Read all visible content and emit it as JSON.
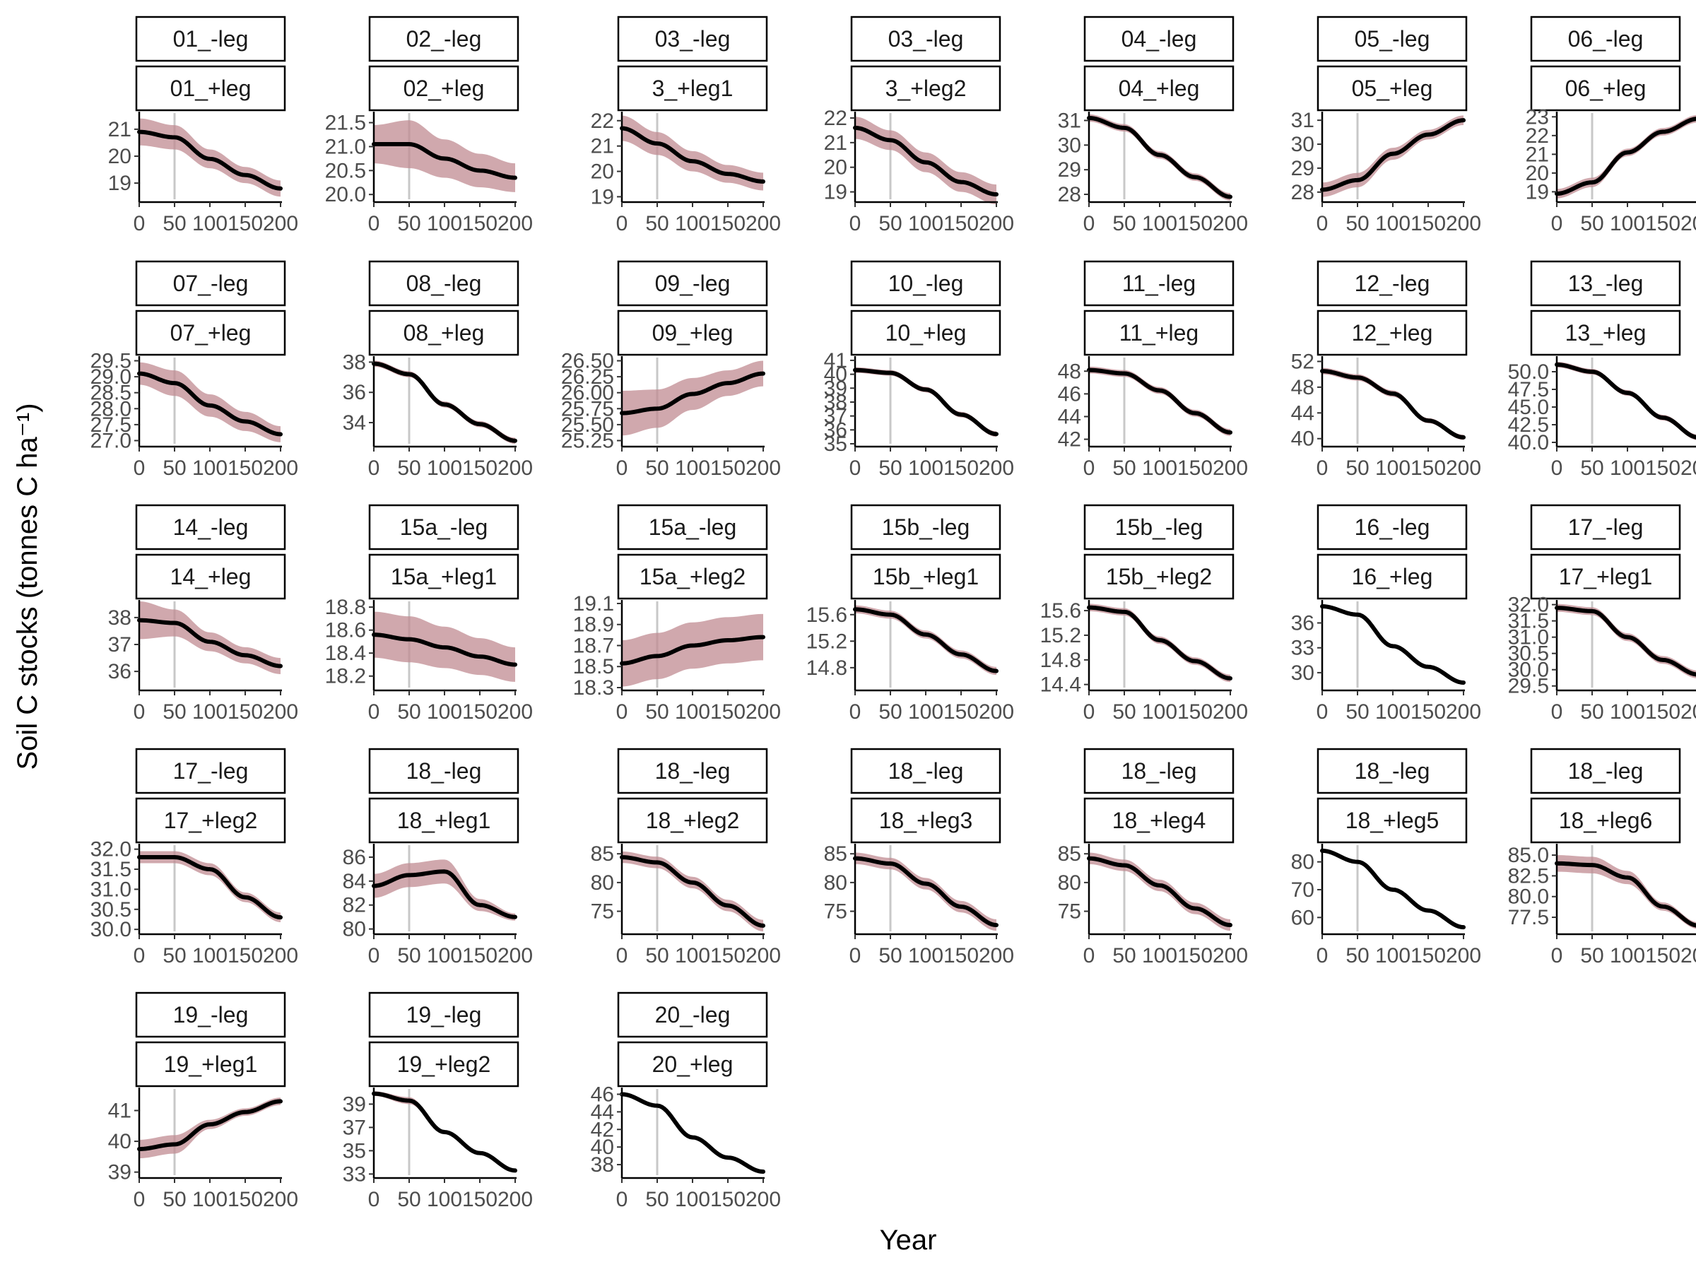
{
  "figure": {
    "xlabel": "Year",
    "ylabel": "Soil C stocks (tonnes C ha⁻¹)",
    "colors": {
      "line": "#000000",
      "band": "#c08b92",
      "vline": "#c8c8c8",
      "strip_fill": "#ffffff",
      "strip_border": "#000000"
    }
  },
  "chart_data": {
    "type": "line",
    "layout": "facet grid, 7 columns x 5 rows, two strip labels per panel",
    "x_ticks": [
      0,
      50,
      100,
      150,
      200
    ],
    "x_range": [
      0,
      200
    ],
    "vline_x": 50,
    "panels": [
      {
        "label1": "01_-leg",
        "label2": "01_+leg",
        "yticks": [
          19,
          20,
          21
        ],
        "ylim": [
          18.4,
          21.6
        ],
        "x": [
          0,
          50,
          100,
          150,
          200
        ],
        "y": [
          20.9,
          20.7,
          19.9,
          19.3,
          18.8
        ],
        "band": [
          0.5,
          0.45,
          0.35,
          0.3,
          0.3
        ]
      },
      {
        "label1": "02_-leg",
        "label2": "02_+leg",
        "yticks": [
          20.0,
          20.5,
          21.0,
          21.5
        ],
        "ylim": [
          19.9,
          21.7
        ],
        "x": [
          0,
          50,
          100,
          150,
          200
        ],
        "y": [
          21.05,
          21.05,
          20.75,
          20.5,
          20.35
        ],
        "band": [
          0.4,
          0.5,
          0.4,
          0.35,
          0.3
        ]
      },
      {
        "label1": "03_-leg",
        "label2": "3_+leg1",
        "yticks": [
          19,
          20,
          21,
          22
        ],
        "ylim": [
          18.9,
          22.3
        ],
        "x": [
          0,
          50,
          100,
          150,
          200
        ],
        "y": [
          21.7,
          21.1,
          20.4,
          19.9,
          19.6
        ],
        "band": [
          0.5,
          0.45,
          0.4,
          0.35,
          0.35
        ]
      },
      {
        "label1": "03_-leg",
        "label2": "3_+leg2",
        "yticks": [
          19,
          20,
          21,
          22
        ],
        "ylim": [
          18.7,
          22.2
        ],
        "x": [
          0,
          50,
          100,
          150,
          200
        ],
        "y": [
          21.6,
          21.1,
          20.2,
          19.4,
          18.9
        ],
        "band": [
          0.45,
          0.4,
          0.4,
          0.4,
          0.4
        ]
      },
      {
        "label1": "04_-leg",
        "label2": "04_+leg",
        "yticks": [
          28,
          29,
          30,
          31
        ],
        "ylim": [
          27.8,
          31.3
        ],
        "x": [
          0,
          50,
          100,
          150,
          200
        ],
        "y": [
          31.1,
          30.7,
          29.6,
          28.7,
          27.9
        ],
        "band": [
          0.15,
          0.15,
          0.15,
          0.15,
          0.15
        ]
      },
      {
        "label1": "05_-leg",
        "label2": "05_+leg",
        "yticks": [
          28,
          29,
          30,
          31
        ],
        "ylim": [
          27.7,
          31.3
        ],
        "x": [
          0,
          50,
          100,
          150,
          200
        ],
        "y": [
          28.1,
          28.5,
          29.6,
          30.4,
          31.0
        ],
        "band": [
          0.3,
          0.3,
          0.25,
          0.2,
          0.2
        ]
      },
      {
        "label1": "06_-leg",
        "label2": "06_+leg",
        "yticks": [
          19,
          20,
          21,
          22,
          23
        ],
        "ylim": [
          18.6,
          23.2
        ],
        "x": [
          0,
          50,
          100,
          150,
          200
        ],
        "y": [
          18.9,
          19.5,
          21.1,
          22.2,
          22.9
        ],
        "band": [
          0.25,
          0.25,
          0.2,
          0.2,
          0.2
        ]
      },
      {
        "label1": "07_-leg",
        "label2": "07_+leg",
        "yticks": [
          27.0,
          27.5,
          28.0,
          28.5,
          29.0,
          29.5
        ],
        "ylim": [
          26.9,
          29.6
        ],
        "x": [
          0,
          50,
          100,
          150,
          200
        ],
        "y": [
          29.1,
          28.8,
          28.1,
          27.6,
          27.2
        ],
        "band": [
          0.35,
          0.4,
          0.35,
          0.3,
          0.25
        ]
      },
      {
        "label1": "08_-leg",
        "label2": "08_+leg",
        "yticks": [
          34,
          36,
          38
        ],
        "ylim": [
          32.6,
          38.3
        ],
        "x": [
          0,
          50,
          100,
          150,
          200
        ],
        "y": [
          37.9,
          37.2,
          35.2,
          33.9,
          32.8
        ],
        "band": [
          0.2,
          0.2,
          0.2,
          0.2,
          0.2
        ]
      },
      {
        "label1": "09_-leg",
        "label2": "09_+leg",
        "yticks": [
          25.25,
          25.5,
          25.75,
          26.0,
          26.25,
          26.5
        ],
        "ylim": [
          25.2,
          26.55
        ],
        "x": [
          0,
          50,
          100,
          150,
          200
        ],
        "y": [
          25.68,
          25.75,
          25.98,
          26.15,
          26.3
        ],
        "band": [
          0.35,
          0.3,
          0.25,
          0.2,
          0.2
        ]
      },
      {
        "label1": "10_-leg",
        "label2": "10_+leg",
        "yticks": [
          35,
          36,
          37,
          38,
          39,
          40,
          41
        ],
        "ylim": [
          35.0,
          41.2
        ],
        "x": [
          0,
          50,
          100,
          150,
          200
        ],
        "y": [
          40.3,
          40.1,
          38.9,
          37.1,
          35.7
        ],
        "band": [
          0.2,
          0.2,
          0.2,
          0.2,
          0.2
        ]
      },
      {
        "label1": "11_-leg",
        "label2": "11_+leg",
        "yticks": [
          42,
          44,
          46,
          48
        ],
        "ylim": [
          41.6,
          49.2
        ],
        "x": [
          0,
          50,
          100,
          150,
          200
        ],
        "y": [
          48.1,
          47.8,
          46.3,
          44.3,
          42.6
        ],
        "band": [
          0.3,
          0.3,
          0.3,
          0.3,
          0.3
        ]
      },
      {
        "label1": "12_-leg",
        "label2": "12_+leg",
        "yticks": [
          40,
          44,
          48,
          52
        ],
        "ylim": [
          39.2,
          52.6
        ],
        "x": [
          0,
          50,
          100,
          150,
          200
        ],
        "y": [
          50.5,
          49.5,
          47.0,
          42.8,
          40.2
        ],
        "band": [
          0.5,
          0.5,
          0.5,
          0.4,
          0.4
        ]
      },
      {
        "label1": "13_-leg",
        "label2": "13_+leg",
        "yticks": [
          40.0,
          42.5,
          45.0,
          47.5,
          50.0
        ],
        "ylim": [
          39.8,
          52.0
        ],
        "x": [
          0,
          50,
          100,
          150,
          200
        ],
        "y": [
          51.0,
          50.0,
          47.0,
          43.5,
          40.7
        ],
        "band": [
          0.4,
          0.4,
          0.4,
          0.4,
          0.4
        ]
      },
      {
        "label1": "14_-leg",
        "label2": "14_+leg",
        "yticks": [
          36,
          37,
          38
        ],
        "ylim": [
          35.4,
          38.6
        ],
        "x": [
          0,
          50,
          100,
          150,
          200
        ],
        "y": [
          37.9,
          37.8,
          37.1,
          36.6,
          36.2
        ],
        "band": [
          0.7,
          0.5,
          0.35,
          0.3,
          0.3
        ]
      },
      {
        "label1": "15a_-leg",
        "label2": "15a_+leg1",
        "yticks": [
          18.2,
          18.4,
          18.6,
          18.8
        ],
        "ylim": [
          18.1,
          18.85
        ],
        "x": [
          0,
          50,
          100,
          150,
          200
        ],
        "y": [
          18.56,
          18.52,
          18.45,
          18.37,
          18.3
        ],
        "band": [
          0.2,
          0.2,
          0.18,
          0.16,
          0.15
        ]
      },
      {
        "label1": "15a_-leg",
        "label2": "15a_+leg2",
        "yticks": [
          18.3,
          18.5,
          18.7,
          18.9,
          19.1
        ],
        "ylim": [
          18.3,
          19.12
        ],
        "x": [
          0,
          50,
          100,
          150,
          200
        ],
        "y": [
          18.53,
          18.6,
          18.7,
          18.75,
          18.78
        ],
        "band": [
          0.22,
          0.22,
          0.22,
          0.22,
          0.22
        ]
      },
      {
        "label1": "15b_-leg",
        "label2": "15b_+leg1",
        "yticks": [
          14.8,
          15.2,
          15.6
        ],
        "ylim": [
          14.5,
          15.8
        ],
        "x": [
          0,
          50,
          100,
          150,
          200
        ],
        "y": [
          15.68,
          15.6,
          15.3,
          15.0,
          14.75
        ],
        "band": [
          0.06,
          0.06,
          0.06,
          0.06,
          0.06
        ]
      },
      {
        "label1": "15b_-leg",
        "label2": "15b_+leg2",
        "yticks": [
          14.4,
          14.8,
          15.2,
          15.6
        ],
        "ylim": [
          14.35,
          15.75
        ],
        "x": [
          0,
          50,
          100,
          150,
          200
        ],
        "y": [
          15.65,
          15.58,
          15.12,
          14.78,
          14.5
        ],
        "band": [
          0.06,
          0.06,
          0.06,
          0.06,
          0.06
        ]
      },
      {
        "label1": "16_-leg",
        "label2": "16_+leg",
        "yticks": [
          30,
          33,
          36
        ],
        "ylim": [
          28.2,
          38.6
        ],
        "x": [
          0,
          50,
          100,
          150,
          200
        ],
        "y": [
          38.0,
          37.0,
          33.2,
          30.7,
          28.8
        ],
        "band": [
          0.1,
          0.1,
          0.1,
          0.1,
          0.1
        ]
      },
      {
        "label1": "17_-leg",
        "label2": "17_+leg1",
        "yticks": [
          29.5,
          30.0,
          30.5,
          31.0,
          31.5,
          32.0
        ],
        "ylim": [
          29.45,
          32.1
        ],
        "x": [
          0,
          50,
          100,
          150,
          200
        ],
        "y": [
          31.9,
          31.8,
          31.0,
          30.3,
          29.85
        ],
        "band": [
          0.12,
          0.12,
          0.12,
          0.12,
          0.12
        ]
      },
      {
        "label1": "17_-leg",
        "label2": "17_+leg2",
        "yticks": [
          30.0,
          30.5,
          31.0,
          31.5,
          32.0
        ],
        "ylim": [
          29.95,
          32.1
        ],
        "x": [
          0,
          50,
          100,
          150,
          200
        ],
        "y": [
          31.8,
          31.8,
          31.5,
          30.8,
          30.3
        ],
        "band": [
          0.15,
          0.15,
          0.15,
          0.12,
          0.12
        ]
      },
      {
        "label1": "18_-leg",
        "label2": "18_+leg1",
        "yticks": [
          80,
          82,
          84,
          86
        ],
        "ylim": [
          79.8,
          87.0
        ],
        "x": [
          0,
          50,
          100,
          150,
          200
        ],
        "y": [
          83.6,
          84.5,
          84.8,
          82.0,
          81.0
        ],
        "band": [
          1.0,
          1.0,
          1.0,
          0.5,
          0.3
        ]
      },
      {
        "label1": "18_-leg",
        "label2": "18_+leg2",
        "yticks": [
          75,
          80,
          85
        ],
        "ylim": [
          71.5,
          86.5
        ],
        "x": [
          0,
          50,
          100,
          150,
          200
        ],
        "y": [
          84.4,
          83.5,
          80.0,
          76.0,
          72.5
        ],
        "band": [
          1.0,
          1.0,
          1.0,
          1.0,
          1.0
        ]
      },
      {
        "label1": "18_-leg",
        "label2": "18_+leg3",
        "yticks": [
          75,
          80,
          85
        ],
        "ylim": [
          71.5,
          86.5
        ],
        "x": [
          0,
          50,
          100,
          150,
          200
        ],
        "y": [
          84.2,
          83.3,
          79.8,
          75.8,
          72.6
        ],
        "band": [
          1.0,
          1.0,
          1.0,
          1.0,
          1.0
        ]
      },
      {
        "label1": "18_-leg",
        "label2": "18_+leg4",
        "yticks": [
          75,
          80,
          85
        ],
        "ylim": [
          71.5,
          86.5
        ],
        "x": [
          0,
          50,
          100,
          150,
          200
        ],
        "y": [
          84.2,
          83.0,
          79.5,
          75.5,
          72.6
        ],
        "band": [
          1.0,
          1.0,
          1.0,
          1.0,
          1.0
        ]
      },
      {
        "label1": "18_-leg",
        "label2": "18_+leg5",
        "yticks": [
          60,
          70,
          80
        ],
        "ylim": [
          55.0,
          86.0
        ],
        "x": [
          0,
          50,
          100,
          150,
          200
        ],
        "y": [
          84.0,
          80.0,
          70.0,
          62.5,
          56.5
        ],
        "band": [
          0.4,
          0.4,
          0.4,
          0.4,
          0.4
        ]
      },
      {
        "label1": "18_-leg",
        "label2": "18_+leg6",
        "yticks": [
          77.5,
          80.0,
          82.5,
          85.0
        ],
        "ylim": [
          75.8,
          86.2
        ],
        "x": [
          0,
          50,
          100,
          150,
          200
        ],
        "y": [
          84.0,
          83.8,
          82.3,
          78.8,
          76.5
        ],
        "band": [
          1.0,
          1.0,
          0.8,
          0.5,
          0.4
        ]
      },
      {
        "label1": "19_-leg",
        "label2": "19_+leg1",
        "yticks": [
          39,
          40,
          41
        ],
        "ylim": [
          38.9,
          41.7
        ],
        "x": [
          0,
          50,
          100,
          150,
          200
        ],
        "y": [
          39.75,
          39.9,
          40.55,
          40.95,
          41.3
        ],
        "band": [
          0.3,
          0.3,
          0.15,
          0.12,
          0.12
        ]
      },
      {
        "label1": "19_-leg",
        "label2": "19_+leg2",
        "yticks": [
          33,
          35,
          37,
          39
        ],
        "ylim": [
          32.9,
          40.3
        ],
        "x": [
          0,
          50,
          100,
          150,
          200
        ],
        "y": [
          39.9,
          39.3,
          36.6,
          34.8,
          33.3
        ],
        "band": [
          0.2,
          0.3,
          0.1,
          0.1,
          0.1
        ]
      },
      {
        "label1": "20_-leg",
        "label2": "20_+leg",
        "yticks": [
          38,
          40,
          42,
          44,
          46
        ],
        "ylim": [
          36.8,
          46.6
        ],
        "x": [
          0,
          50,
          100,
          150,
          200
        ],
        "y": [
          46.0,
          44.7,
          41.1,
          38.8,
          37.2
        ],
        "band": [
          0.2,
          0.2,
          0.2,
          0.2,
          0.2
        ]
      }
    ]
  }
}
